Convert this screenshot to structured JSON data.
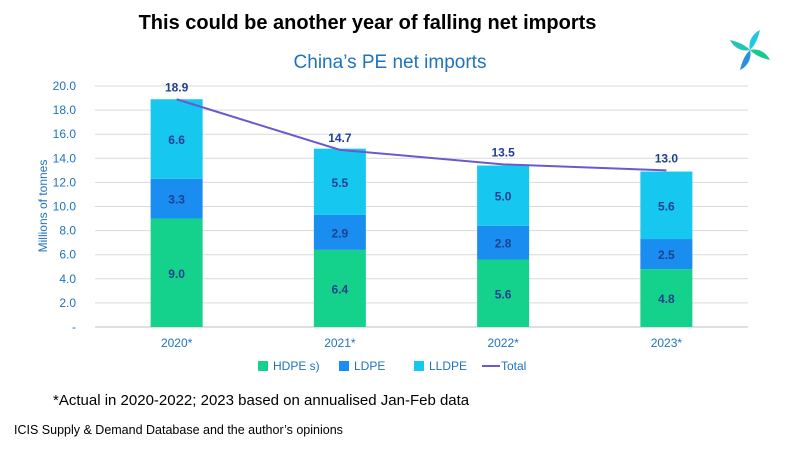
{
  "slide": {
    "title": "This could be another year of falling net imports",
    "footnote": "*Actual in 2020-2022; 2023 based on annualised Jan-Feb data",
    "source": "ICIS Supply & Demand Database and the author’s opinions",
    "logo_icon": "icis-logo-icon"
  },
  "chart_data": {
    "type": "bar",
    "stacked": true,
    "title": "China’s PE net imports",
    "xlabel": "",
    "ylabel": "Millions of tonnes",
    "ylim": [
      0,
      20
    ],
    "yticks": [
      "-",
      "2.0",
      "4.0",
      "6.0",
      "8.0",
      "10.0",
      "12.0",
      "14.0",
      "16.0",
      "18.0",
      "20.0"
    ],
    "grid": true,
    "legend_position": "bottom",
    "categories": [
      "2020*",
      "2021*",
      "2022*",
      "2023*"
    ],
    "series": [
      {
        "name": "HDPE s)",
        "color": "#14d28c",
        "values": [
          9.0,
          6.4,
          5.6,
          4.8
        ],
        "labels": [
          "9.0",
          "6.4",
          "5.6",
          "4.8"
        ]
      },
      {
        "name": "LDPE",
        "color": "#1a8ef0",
        "values": [
          3.3,
          2.9,
          2.8,
          2.5
        ],
        "labels": [
          "3.3",
          "2.9",
          "2.8",
          "2.5"
        ]
      },
      {
        "name": "LLDPE",
        "color": "#16c7f0",
        "values": [
          6.6,
          5.5,
          5.0,
          5.6
        ],
        "labels": [
          "6.6",
          "5.5",
          "5.0",
          "5.6"
        ]
      }
    ],
    "total": {
      "name": "Total",
      "color": "#6a5acd",
      "values": [
        18.9,
        14.7,
        13.5,
        13.0
      ],
      "labels": [
        "18.9",
        "14.7",
        "13.5",
        "13.0"
      ]
    },
    "colors": {
      "axis_text": "#1e73be",
      "value_label": "#1f3f8f",
      "grid": "#d9d9d9"
    }
  }
}
